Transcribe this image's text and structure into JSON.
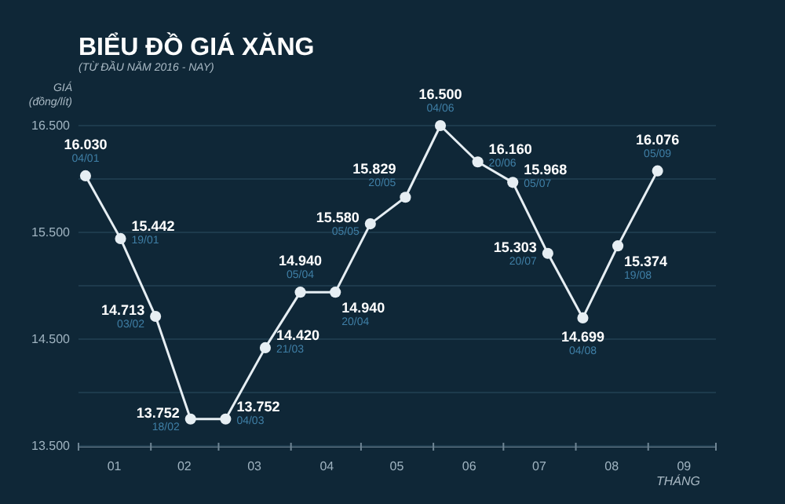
{
  "chart_data": {
    "type": "line",
    "title": "BIỂU ĐỒ GIÁ XĂNG",
    "subtitle": "(TỪ ĐẦU NĂM 2016 - NAY)",
    "ylabel": "GIÁ\n(đồng/lít)",
    "xlabel": "THÁNG",
    "x": [
      "2016-01-04",
      "2016-01-19",
      "2016-02-03",
      "2016-02-18",
      "2016-03-04",
      "2016-03-21",
      "2016-04-05",
      "2016-04-20",
      "2016-05-05",
      "2016-05-20",
      "2016-06-04",
      "2016-06-20",
      "2016-07-05",
      "2016-07-20",
      "2016-08-04",
      "2016-08-19",
      "2016-09-05"
    ],
    "series": [
      {
        "color": "#e6eef3",
        "values": [
          16030,
          15442,
          14713,
          13752,
          13752,
          14420,
          14940,
          14940,
          15580,
          15829,
          16500,
          16160,
          15968,
          15303,
          14699,
          15374,
          16076
        ],
        "value_labels": [
          "16.030",
          "15.442",
          "14.713",
          "13.752",
          "13.752",
          "14.420",
          "14.940",
          "14.940",
          "15.580",
          "15.829",
          "16.500",
          "16.160",
          "15.968",
          "15.303",
          "14.699",
          "15.374",
          "16.076"
        ]
      }
    ],
    "annotations": [
      {
        "text": "04/01",
        "x": "2016-01-04",
        "y": 16030
      },
      {
        "text": "19/01",
        "x": "2016-01-19",
        "y": 15442
      },
      {
        "text": "03/02",
        "x": "2016-02-03",
        "y": 14713
      },
      {
        "text": "18/02",
        "x": "2016-02-18",
        "y": 13752
      },
      {
        "text": "04/03",
        "x": "2016-03-04",
        "y": 13752
      },
      {
        "text": "21/03",
        "x": "2016-03-21",
        "y": 14420
      },
      {
        "text": "05/04",
        "x": "2016-04-05",
        "y": 14940
      },
      {
        "text": "20/04",
        "x": "2016-04-20",
        "y": 14940
      },
      {
        "text": "05/05",
        "x": "2016-05-05",
        "y": 15580
      },
      {
        "text": "20/05",
        "x": "2016-05-20",
        "y": 15829
      },
      {
        "text": "04/06",
        "x": "2016-06-04",
        "y": 16500
      },
      {
        "text": "20/06",
        "x": "2016-06-20",
        "y": 16160
      },
      {
        "text": "05/07",
        "x": "2016-07-05",
        "y": 15968
      },
      {
        "text": "20/07",
        "x": "2016-07-20",
        "y": 15303
      },
      {
        "text": "04/08",
        "x": "2016-08-04",
        "y": 14699
      },
      {
        "text": "19/08",
        "x": "2016-08-19",
        "y": 15374
      },
      {
        "text": "05/09",
        "x": "2016-09-05",
        "y": 16076
      }
    ],
    "xlim": [
      "2016-01-01",
      "2016-09-30"
    ],
    "xticks": [
      {
        "value": "2016-01-01",
        "label": null
      },
      {
        "value": "2016-01-16",
        "label": "01"
      },
      {
        "value": "2016-02-01",
        "label": null
      },
      {
        "value": "2016-02-15",
        "label": "02"
      },
      {
        "value": "2016-03-01",
        "label": null
      },
      {
        "value": "2016-03-16",
        "label": "03"
      },
      {
        "value": "2016-04-01",
        "label": null
      },
      {
        "value": "2016-04-16",
        "label": "04"
      },
      {
        "value": "2016-05-01",
        "label": null
      },
      {
        "value": "2016-05-16",
        "label": "05"
      },
      {
        "value": "2016-06-01",
        "label": null
      },
      {
        "value": "2016-06-16",
        "label": "06"
      },
      {
        "value": "2016-07-01",
        "label": null
      },
      {
        "value": "2016-07-16",
        "label": "07"
      },
      {
        "value": "2016-08-01",
        "label": null
      },
      {
        "value": "2016-08-16",
        "label": "08"
      },
      {
        "value": "2016-09-01",
        "label": null
      },
      {
        "value": "2016-09-16",
        "label": "09"
      },
      {
        "value": "2016-09-30",
        "label": null
      }
    ],
    "ylim": [
      13500,
      16500
    ],
    "yticks": [
      {
        "value": 13500,
        "label": "13.500"
      },
      {
        "value": 14000,
        "label": null
      },
      {
        "value": 14500,
        "label": "14.500"
      },
      {
        "value": 15000,
        "label": null
      },
      {
        "value": 15500,
        "label": "15.500"
      },
      {
        "value": 16000,
        "label": null
      },
      {
        "value": 16500,
        "label": "16.500"
      }
    ],
    "grid": "y",
    "marker": "circle",
    "line_style": "solid"
  }
}
